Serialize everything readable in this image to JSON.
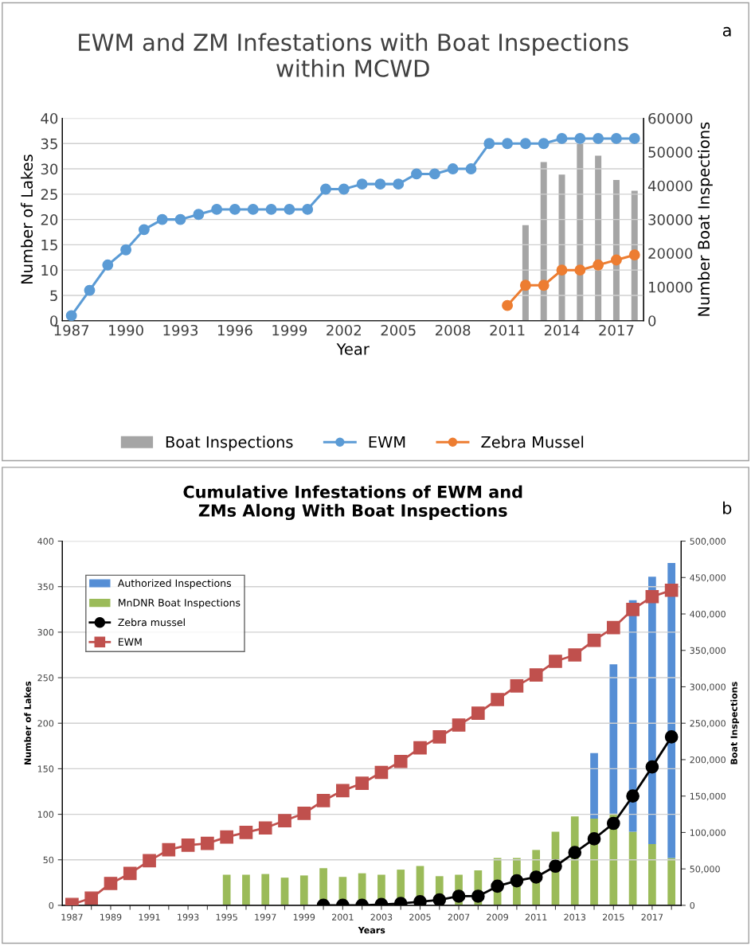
{
  "chart_data": [
    {
      "type": "line",
      "title": "EWM and ZM Infestations with Boat Inspections\nwithin MCWD",
      "xlabel": "Year",
      "ylabel": "Number of Lakes",
      "y2label": "Number Boat Inspections",
      "annotations": [
        "a"
      ],
      "categories": [
        "1987",
        null,
        null,
        "1990",
        null,
        null,
        "1993",
        null,
        null,
        "1996",
        null,
        null,
        "1999",
        null,
        null,
        "2002",
        null,
        null,
        "2005",
        null,
        null,
        "2008",
        null,
        null,
        "2011",
        null,
        null,
        "2014",
        null,
        null,
        "2017",
        null
      ],
      "series": [
        {
          "name": "Boat Inspections",
          "type": "bar",
          "axis": "y2",
          "color": "#a5a5a5",
          "values": [
            null,
            null,
            null,
            null,
            null,
            null,
            null,
            null,
            null,
            null,
            null,
            null,
            null,
            null,
            null,
            null,
            null,
            null,
            null,
            null,
            null,
            null,
            null,
            null,
            null,
            28300,
            47000,
            43300,
            53000,
            48900,
            41700,
            38500
          ]
        },
        {
          "name": "EWM",
          "color": "#5b9bd5",
          "marker": "circle",
          "values": [
            1,
            6,
            11,
            14,
            18,
            20,
            20,
            21,
            22,
            22,
            22,
            22,
            22,
            22,
            26,
            26,
            27,
            27,
            27,
            29,
            29,
            30,
            30,
            35,
            35,
            35,
            35,
            36,
            36,
            36,
            36,
            36
          ]
        },
        {
          "name": "Zebra Mussel",
          "color": "#ed7d31",
          "marker": "circle",
          "values": [
            null,
            null,
            null,
            null,
            null,
            null,
            null,
            null,
            null,
            null,
            null,
            null,
            null,
            null,
            null,
            null,
            null,
            null,
            null,
            null,
            null,
            null,
            null,
            null,
            3,
            7,
            7,
            10,
            10,
            11,
            12,
            13
          ]
        }
      ],
      "ylim": [
        0,
        40
      ],
      "yticks": [
        0,
        5,
        10,
        15,
        20,
        25,
        30,
        35,
        40
      ],
      "y2lim": [
        0,
        60000
      ],
      "y2ticks": [
        0,
        10000,
        20000,
        30000,
        40000,
        50000,
        60000
      ],
      "grid": "y",
      "legend": "bottom"
    },
    {
      "type": "line",
      "title": "Cumulative Infestations of EWM and\nZMs Along With Boat Inspections",
      "xlabel": "Years",
      "ylabel": "Number of Lakes",
      "y2label": "Boat Inspections",
      "annotations": [
        "b"
      ],
      "categories": [
        "1987",
        null,
        "1989",
        null,
        "1991",
        null,
        "1993",
        null,
        "1995",
        null,
        "1997",
        null,
        "1999",
        null,
        "2001",
        null,
        "2003",
        null,
        "2005",
        null,
        "2007",
        null,
        "2009",
        null,
        "2011",
        null,
        "2013",
        null,
        "2015",
        null,
        "2017",
        null
      ],
      "stacked": true,
      "series": [
        {
          "name": "MnDNR Boat Inspections",
          "type": "bar",
          "axis": "y2",
          "color": "#9bbb59",
          "values": [
            null,
            null,
            null,
            null,
            null,
            null,
            null,
            null,
            42000,
            42000,
            43000,
            38000,
            41000,
            51000,
            39000,
            44000,
            42000,
            49000,
            54000,
            40000,
            42000,
            48000,
            65000,
            65000,
            76000,
            101000,
            122000,
            119000,
            126000,
            101000,
            84000,
            65000
          ]
        },
        {
          "name": "Authorized Inspections",
          "type": "bar",
          "axis": "y2",
          "color": "#558ed5",
          "values": [
            null,
            null,
            null,
            null,
            null,
            null,
            null,
            null,
            null,
            null,
            null,
            null,
            null,
            null,
            null,
            null,
            null,
            null,
            null,
            null,
            null,
            null,
            null,
            null,
            null,
            null,
            null,
            90000,
            205000,
            318000,
            367000,
            405000
          ]
        },
        {
          "name": "Zebra mussel",
          "color": "#000000",
          "marker": "circle",
          "values": [
            null,
            null,
            null,
            null,
            null,
            null,
            null,
            null,
            null,
            null,
            null,
            null,
            null,
            0,
            0,
            0,
            1,
            2,
            4,
            6,
            10,
            10,
            21,
            27,
            31,
            43,
            58,
            73,
            90,
            120,
            152,
            185
          ]
        },
        {
          "name": "EWM",
          "color": "#c0504d",
          "marker": "square",
          "values": [
            1,
            8,
            24,
            35,
            49,
            61,
            66,
            68,
            75,
            80,
            85,
            93,
            101,
            115,
            126,
            134,
            146,
            158,
            173,
            185,
            198,
            211,
            226,
            241,
            253,
            268,
            275,
            291,
            305,
            325,
            339,
            346
          ]
        }
      ],
      "ylim": [
        0,
        400
      ],
      "yticks": [
        0,
        50,
        100,
        150,
        200,
        250,
        300,
        350,
        400
      ],
      "y2lim": [
        0,
        500000
      ],
      "y2ticks": [
        {
          "value": 0,
          "label": "0"
        },
        {
          "value": 50000,
          "label": "50,000"
        },
        {
          "value": 100000,
          "label": "100,000"
        },
        {
          "value": 150000,
          "label": "150,000"
        },
        {
          "value": 200000,
          "label": "200,000"
        },
        {
          "value": 250000,
          "label": "250,000"
        },
        {
          "value": 300000,
          "label": "300,000"
        },
        {
          "value": 350000,
          "label": "350,000"
        },
        {
          "value": 400000,
          "label": "400,000"
        },
        {
          "value": 450000,
          "label": "450,000"
        },
        {
          "value": 500000,
          "label": "500,000"
        }
      ],
      "grid": "y",
      "legend": "top left"
    }
  ]
}
